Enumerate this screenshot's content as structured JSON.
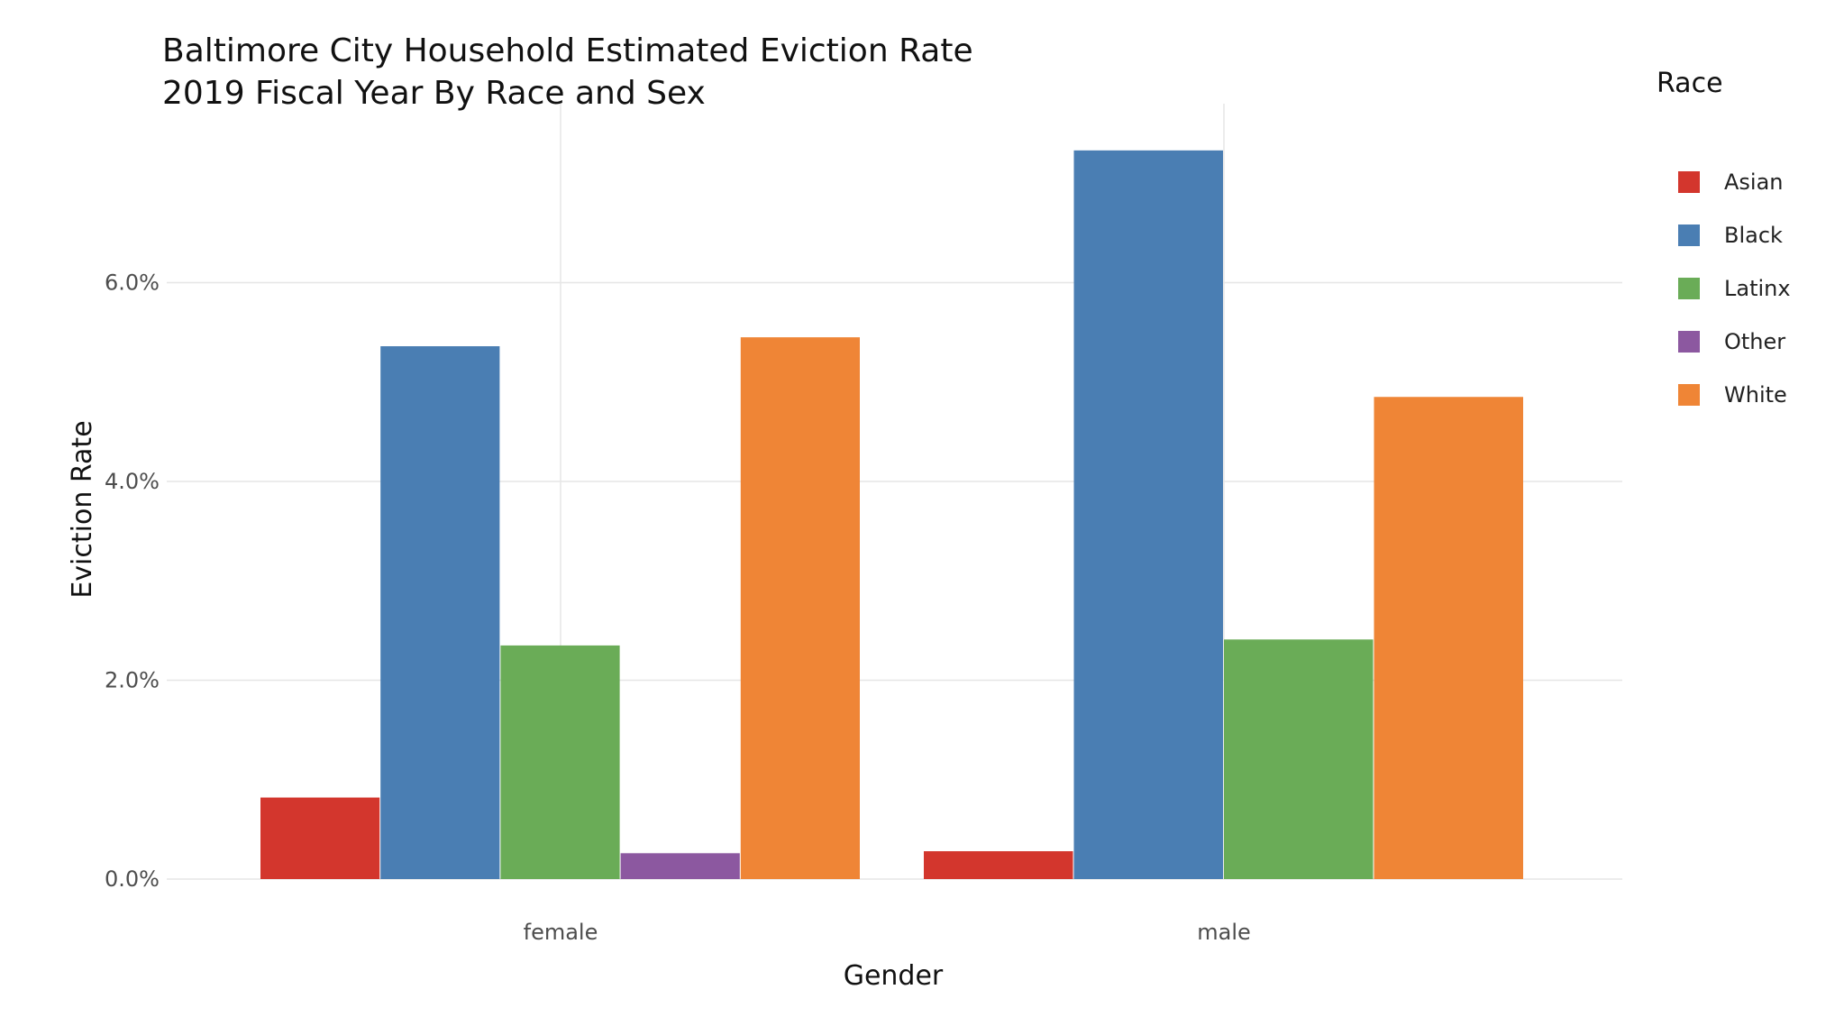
{
  "chart_data": {
    "type": "bar",
    "title": "Baltimore City Household Estimated Eviction Rate",
    "subtitle": "2019 Fiscal Year By Race and Sex",
    "xlabel": "Gender",
    "ylabel": "Eviction Rate",
    "categories": [
      "female",
      "male"
    ],
    "ylim": [
      0,
      0.078
    ],
    "yticks": [
      0,
      0.02,
      0.04,
      0.06
    ],
    "ytick_labels": [
      "0.0%",
      "2.0%",
      "4.0%",
      "6.0%"
    ],
    "grid": true,
    "legend": {
      "title": "Race",
      "position": "right"
    },
    "series": [
      {
        "name": "Asian",
        "color": "#d3362d",
        "values": [
          0.0082,
          0.0028
        ]
      },
      {
        "name": "Black",
        "color": "#4a7eb3",
        "values": [
          0.0536,
          0.0733
        ]
      },
      {
        "name": "Latinx",
        "color": "#6aac57",
        "values": [
          0.0235,
          0.0241
        ]
      },
      {
        "name": "Other",
        "color": "#8c58a0",
        "values": [
          0.0026,
          null
        ]
      },
      {
        "name": "White",
        "color": "#ef8536",
        "values": [
          0.0545,
          0.0485
        ]
      }
    ]
  }
}
